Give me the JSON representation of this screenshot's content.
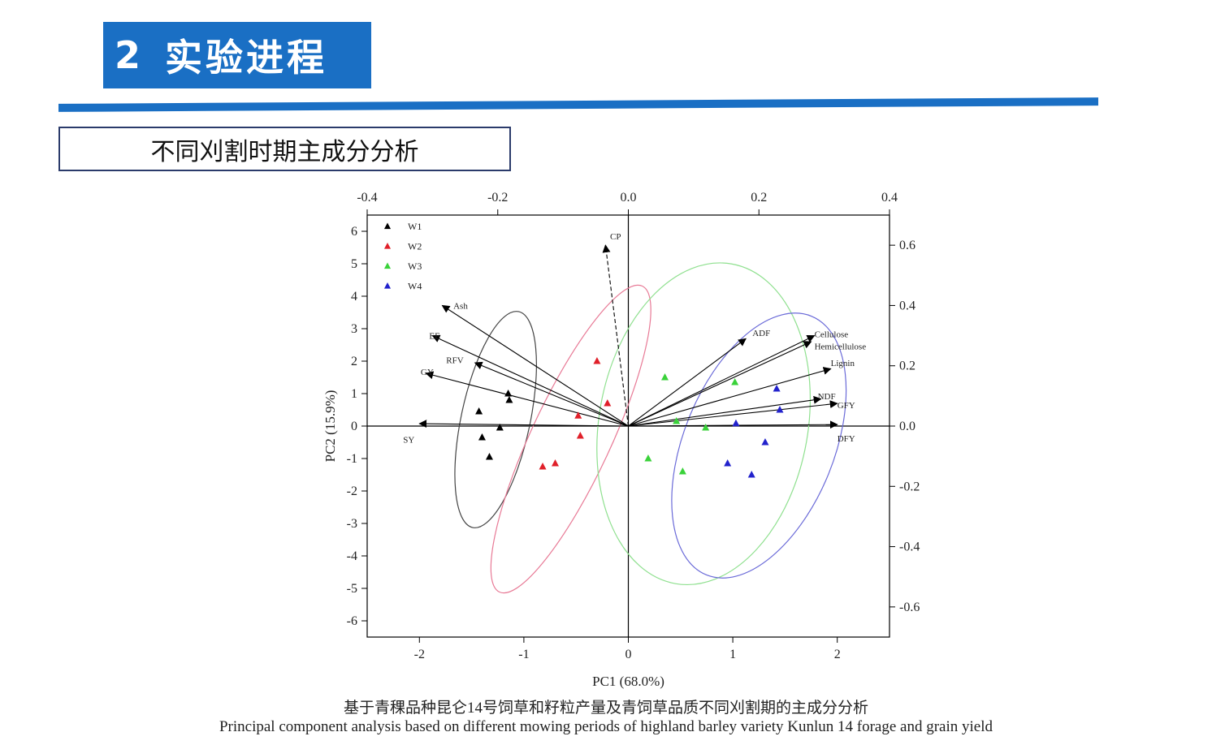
{
  "header": {
    "number": "2",
    "title": "实验进程"
  },
  "subtitle": "不同刈割时期主成分分析",
  "caption_cn": "基于青稞品种昆仑14号饲草和籽粒产量及青饲草品质不同刈割期的主成分分析",
  "caption_en": "Principal component analysis based on different mowing periods of highland barley variety Kunlun 14 forage and grain yield",
  "colors": {
    "W1": "#000000",
    "W2": "#e0202a",
    "W3": "#3ad23a",
    "W4": "#2222cc",
    "ellipse_W1": "#444444",
    "ellipse_W2": "#e87a96",
    "ellipse_W3": "#8fe08f",
    "ellipse_W4": "#6a6ad8",
    "accent": "#1a6fc4"
  },
  "chart_data": {
    "type": "scatter",
    "subtype": "PCA biplot",
    "xlabel": "PC1 (68.0%)",
    "ylabel": "PC2 (15.9%)",
    "xlim": [
      -2.5,
      2.5
    ],
    "ylim": [
      -6.5,
      6.5
    ],
    "xticks": [
      "-2",
      "-1",
      "0",
      "1",
      "2"
    ],
    "yticks": [
      "-6",
      "-5",
      "-4",
      "-3",
      "-2",
      "-1",
      "0",
      "1",
      "2",
      "3",
      "4",
      "5",
      "6"
    ],
    "top_axis": {
      "lim": [
        -0.4,
        0.4
      ],
      "ticks": [
        "-0.4",
        "-0.2",
        "0.0",
        "0.2",
        "0.4"
      ]
    },
    "right_axis": {
      "lim": [
        -0.7,
        0.7
      ],
      "ticks": [
        "-0.6",
        "-0.4",
        "-0.2",
        "0.0",
        "0.2",
        "0.4",
        "0.6"
      ]
    },
    "legend": {
      "position": "top-left",
      "entries": [
        "W1",
        "W2",
        "W3",
        "W4"
      ]
    },
    "series": [
      {
        "name": "W1",
        "points": [
          [
            -1.15,
            1.0
          ],
          [
            -1.14,
            0.8
          ],
          [
            -1.43,
            0.45
          ],
          [
            -1.23,
            -0.05
          ],
          [
            -1.4,
            -0.35
          ],
          [
            -1.33,
            -0.95
          ]
        ]
      },
      {
        "name": "W2",
        "points": [
          [
            -0.3,
            2.0
          ],
          [
            -0.2,
            0.7
          ],
          [
            -0.48,
            0.32
          ],
          [
            -0.46,
            -0.3
          ],
          [
            -0.7,
            -1.15
          ],
          [
            -0.82,
            -1.25
          ]
        ]
      },
      {
        "name": "W3",
        "points": [
          [
            0.35,
            1.5
          ],
          [
            1.02,
            1.35
          ],
          [
            0.46,
            0.15
          ],
          [
            0.74,
            -0.05
          ],
          [
            0.19,
            -1.0
          ],
          [
            0.52,
            -1.4
          ]
        ]
      },
      {
        "name": "W4",
        "points": [
          [
            1.42,
            1.15
          ],
          [
            1.45,
            0.5
          ],
          [
            1.03,
            0.08
          ],
          [
            1.31,
            -0.5
          ],
          [
            0.95,
            -1.15
          ],
          [
            1.18,
            -1.5
          ]
        ]
      }
    ],
    "loadings": [
      {
        "label": "CP",
        "x": -0.035,
        "y": 0.6,
        "label_x": -0.028,
        "label_y": 0.63
      },
      {
        "label": "Ash",
        "x": -0.285,
        "y": 0.4,
        "label_x": -0.268,
        "label_y": 0.4
      },
      {
        "label": "EE",
        "x": -0.3,
        "y": 0.3,
        "label_x": -0.305,
        "label_y": 0.3
      },
      {
        "label": "RFV",
        "x": -0.235,
        "y": 0.21,
        "label_x": -0.279,
        "label_y": 0.22
      },
      {
        "label": "GY",
        "x": -0.31,
        "y": 0.175,
        "label_x": -0.318,
        "label_y": 0.18
      },
      {
        "label": "SY",
        "x": -0.32,
        "y": 0.008,
        "label_x": -0.345,
        "label_y": -0.045
      },
      {
        "label": "ADF",
        "x": 0.18,
        "y": 0.29,
        "label_x": 0.19,
        "label_y": 0.31
      },
      {
        "label": "Cellulose",
        "x": 0.285,
        "y": 0.3,
        "label_x": 0.285,
        "label_y": 0.305
      },
      {
        "label": "Hemicellulose",
        "x": 0.28,
        "y": 0.28,
        "label_x": 0.285,
        "label_y": 0.265
      },
      {
        "label": "Lignin",
        "x": 0.31,
        "y": 0.19,
        "label_x": 0.31,
        "label_y": 0.21
      },
      {
        "label": "NDF",
        "x": 0.295,
        "y": 0.09,
        "label_x": 0.29,
        "label_y": 0.1
      },
      {
        "label": "GFY",
        "x": 0.32,
        "y": 0.075,
        "label_x": 0.32,
        "label_y": 0.07
      },
      {
        "label": "DFY",
        "x": 0.32,
        "y": 0.005,
        "label_x": 0.32,
        "label_y": -0.04
      }
    ],
    "ellipses": [
      {
        "group": "W1",
        "cx": -1.27,
        "cy": 0.2,
        "rx": 0.33,
        "ry": 3.4,
        "rotation": 12
      },
      {
        "group": "W2",
        "cx": -0.55,
        "cy": -0.4,
        "rx": 0.38,
        "ry": 5.2,
        "rotation": 25
      },
      {
        "group": "W3",
        "cx": 0.72,
        "cy": 0.07,
        "rx": 1.0,
        "ry": 5.0,
        "rotation": 10
      },
      {
        "group": "W4",
        "cx": 1.25,
        "cy": -0.6,
        "rx": 0.72,
        "ry": 4.3,
        "rotation": 22
      }
    ]
  }
}
